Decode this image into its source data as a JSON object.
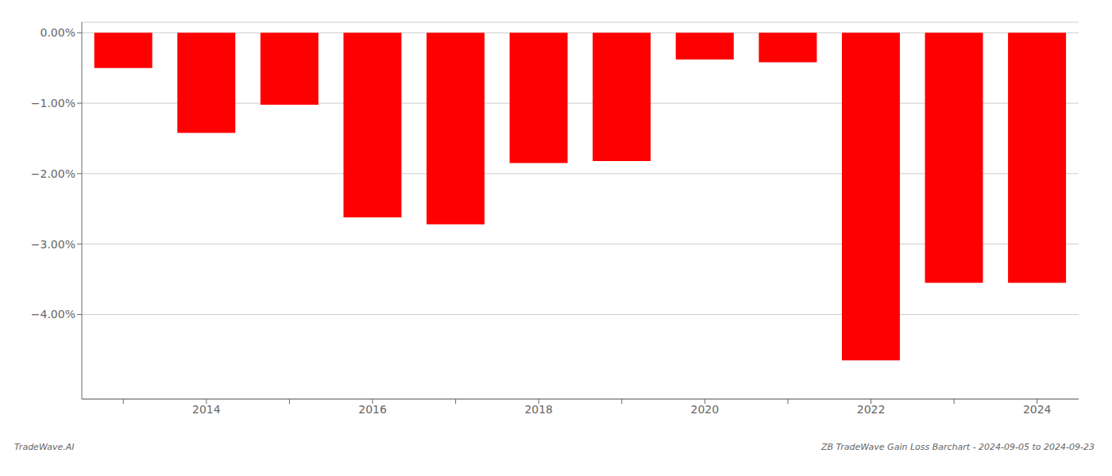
{
  "chart_data": {
    "type": "bar",
    "categories": [
      null,
      "2014",
      null,
      "2016",
      null,
      "2018",
      null,
      "2020",
      null,
      "2022",
      null,
      "2024"
    ],
    "values": [
      -0.5,
      -1.42,
      -1.02,
      -2.62,
      -2.72,
      -1.85,
      -1.82,
      -0.38,
      -0.42,
      -4.65,
      -3.55,
      -3.55
    ],
    "color": "#ff0000",
    "ylim": [
      -5.2,
      0.15
    ],
    "yticks": [
      {
        "value": 0.0,
        "label": "0.00%"
      },
      {
        "value": -1.0,
        "label": "−1.00%"
      },
      {
        "value": -2.0,
        "label": "−2.00%"
      },
      {
        "value": -3.0,
        "label": "−3.00%"
      },
      {
        "value": -4.0,
        "label": "−4.00%"
      }
    ],
    "grid": true,
    "annotations": [
      "TradeWave.AI",
      "ZB TradeWave Gain Loss Barchart - 2024-09-05 to 2024-09-23"
    ]
  }
}
